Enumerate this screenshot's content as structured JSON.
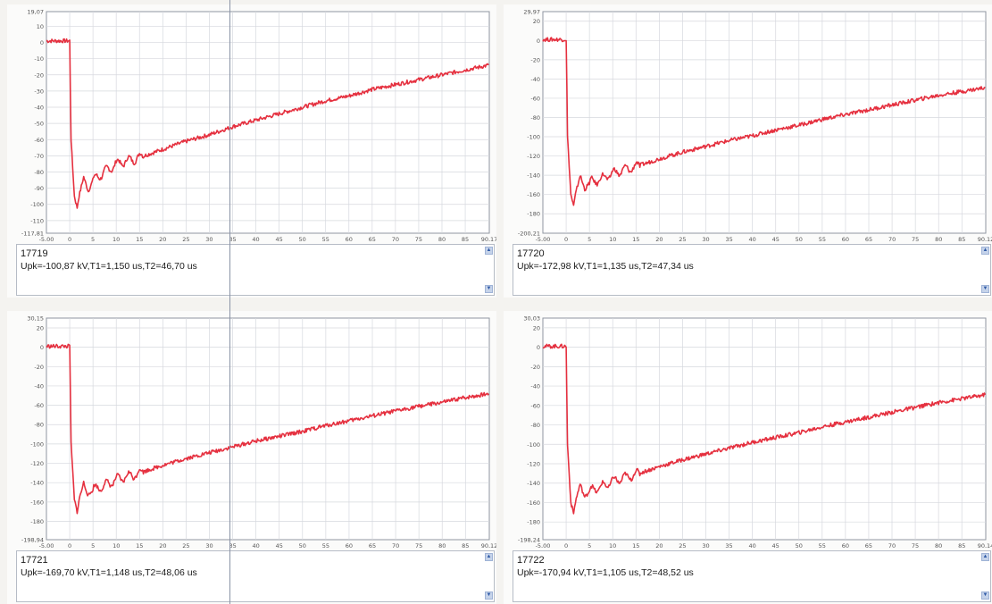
{
  "style": {
    "trace_color": "#e5303f",
    "grid_color": "#d6d8de",
    "axis_color": "#8f95a0"
  },
  "panels": [
    {
      "id": "17719",
      "stats": "Upk=-100,87 kV,T1=1,150 us,T2=46,70 us"
    },
    {
      "id": "17720",
      "stats": "Upk=-172,98 kV,T1=1,135 us,T2=47,34 us"
    },
    {
      "id": "17721",
      "stats": "Upk=-169,70 kV,T1=1,148 us,T2=48,06 us"
    },
    {
      "id": "17722",
      "stats": "Upk=-170,94 kV,T1=1,105 us,T2=48,52 us"
    }
  ],
  "chart_data": [
    {
      "type": "line",
      "title": "",
      "xlabel": "",
      "ylabel": "",
      "xlim": [
        -5.0,
        90.17
      ],
      "ylim": [
        -117.81,
        19.07
      ],
      "x_ticks": [
        "-5,00",
        "0",
        "5",
        "10",
        "15",
        "20",
        "25",
        "30",
        "35",
        "40",
        "45",
        "50",
        "55",
        "60",
        "65",
        "70",
        "75",
        "80",
        "85",
        "90,17"
      ],
      "y_ticks": [
        "19,07",
        "10",
        "0",
        "-10",
        "-20",
        "-30",
        "-40",
        "-50",
        "-60",
        "-70",
        "-80",
        "-90",
        "-100",
        "-110",
        "-117,81"
      ],
      "grid": true,
      "series": [
        {
          "x": [
            -5,
            0,
            0.3,
            1,
            1.6,
            2,
            3,
            4,
            5,
            8,
            10,
            15,
            20,
            25,
            30,
            35,
            40,
            45,
            50,
            55,
            60,
            65,
            70,
            75,
            80,
            85,
            90
          ],
          "y": [
            1,
            1,
            -60,
            -95,
            -102,
            -95,
            -83,
            -92,
            -85,
            -79,
            -75,
            -71,
            -66,
            -61,
            -57,
            -52,
            -48,
            -44,
            -40,
            -36,
            -33,
            -29,
            -26,
            -23,
            -20,
            -17,
            -14
          ]
        }
      ]
    },
    {
      "type": "line",
      "title": "",
      "xlabel": "",
      "ylabel": "",
      "xlim": [
        -5.0,
        90.12
      ],
      "ylim": [
        -200.21,
        29.97
      ],
      "x_ticks": [
        "-5,00",
        "0",
        "5",
        "10",
        "15",
        "20",
        "25",
        "30",
        "35",
        "40",
        "45",
        "50",
        "55",
        "60",
        "65",
        "70",
        "75",
        "80",
        "85",
        "90,12"
      ],
      "y_ticks": [
        "29,97",
        "20",
        "0",
        "-20",
        "-40",
        "-60",
        "-80",
        "-100",
        "-120",
        "-140",
        "-160",
        "-180",
        "-200,21"
      ],
      "grid": true,
      "series": [
        {
          "x": [
            -5,
            0,
            0.3,
            1,
            1.6,
            2,
            3,
            4,
            5,
            8,
            10,
            15,
            20,
            25,
            30,
            35,
            40,
            45,
            50,
            55,
            60,
            65,
            70,
            75,
            80,
            85,
            90
          ],
          "y": [
            1,
            1,
            -100,
            -160,
            -172,
            -160,
            -140,
            -155,
            -148,
            -143,
            -138,
            -131,
            -123,
            -116,
            -110,
            -104,
            -99,
            -93,
            -88,
            -82,
            -77,
            -72,
            -67,
            -62,
            -57,
            -53,
            -49
          ]
        }
      ]
    },
    {
      "type": "line",
      "title": "",
      "xlabel": "",
      "ylabel": "",
      "xlim": [
        -5.0,
        90.12
      ],
      "ylim": [
        -198.94,
        30.15
      ],
      "x_ticks": [
        "-5,00",
        "0",
        "5",
        "10",
        "15",
        "20",
        "25",
        "30",
        "35",
        "40",
        "45",
        "50",
        "55",
        "60",
        "65",
        "70",
        "75",
        "80",
        "85",
        "90,12"
      ],
      "y_ticks": [
        "30,15",
        "20",
        "0",
        "-20",
        "-40",
        "-60",
        "-80",
        "-100",
        "-120",
        "-140",
        "-160",
        "-180",
        "-198,94"
      ],
      "grid": true,
      "series": [
        {
          "x": [
            -5,
            0,
            0.3,
            1,
            1.6,
            2,
            3,
            4,
            5,
            8,
            10,
            15,
            20,
            25,
            30,
            35,
            40,
            45,
            50,
            55,
            60,
            65,
            70,
            75,
            80,
            85,
            90
          ],
          "y": [
            1,
            1,
            -100,
            -158,
            -170,
            -158,
            -140,
            -154,
            -147,
            -142,
            -137,
            -130,
            -122,
            -115,
            -109,
            -103,
            -97,
            -92,
            -87,
            -81,
            -76,
            -71,
            -66,
            -61,
            -57,
            -52,
            -48
          ]
        }
      ]
    },
    {
      "type": "line",
      "title": "",
      "xlabel": "",
      "ylabel": "",
      "xlim": [
        -5.0,
        90.14
      ],
      "ylim": [
        -198.24,
        30.03
      ],
      "x_ticks": [
        "-5,00",
        "0",
        "5",
        "10",
        "15",
        "20",
        "25",
        "30",
        "35",
        "40",
        "45",
        "50",
        "55",
        "60",
        "65",
        "70",
        "75",
        "80",
        "85",
        "90,14"
      ],
      "y_ticks": [
        "30,03",
        "20",
        "0",
        "-20",
        "-40",
        "-60",
        "-80",
        "-100",
        "-120",
        "-140",
        "-160",
        "-180",
        "-198,24"
      ],
      "grid": true,
      "series": [
        {
          "x": [
            -5,
            0,
            0.3,
            1,
            1.6,
            2,
            3,
            4,
            5,
            8,
            10,
            15,
            20,
            25,
            30,
            35,
            40,
            45,
            50,
            55,
            60,
            65,
            70,
            75,
            80,
            85,
            90
          ],
          "y": [
            1,
            1,
            -100,
            -160,
            -171,
            -159,
            -141,
            -155,
            -148,
            -143,
            -138,
            -131,
            -123,
            -116,
            -110,
            -104,
            -98,
            -93,
            -88,
            -82,
            -77,
            -72,
            -67,
            -62,
            -57,
            -53,
            -49
          ]
        }
      ]
    }
  ]
}
